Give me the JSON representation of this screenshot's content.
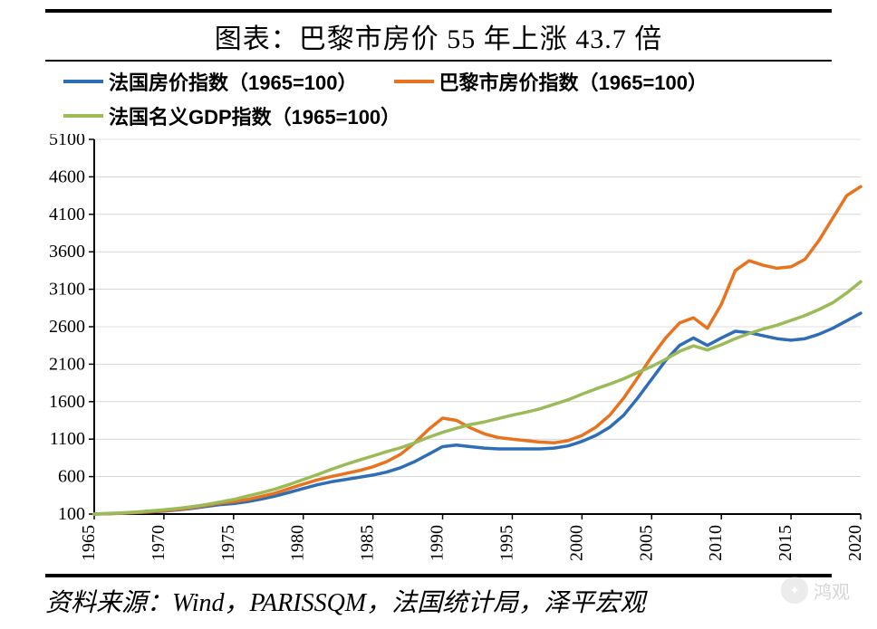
{
  "title": "图表：巴黎市房价 55 年上涨 43.7 倍",
  "legend": {
    "items": [
      {
        "label": "法国房价指数（1965=100）",
        "color": "#2f6db5"
      },
      {
        "label": "巴黎市房价指数（1965=100）",
        "color": "#e8731f"
      },
      {
        "label": "法国名义GDP指数（1965=100）",
        "color": "#9bbb59"
      }
    ]
  },
  "source": "资料来源：Wind，PARISSQM，法国统计局，泽平宏观",
  "watermark": "鸿观",
  "chart": {
    "type": "line",
    "background_color": "#ffffff",
    "grid_color": "#808080",
    "axis_color": "#000000",
    "line_width": 3.5,
    "xlim": [
      1965,
      2020
    ],
    "ylim": [
      100,
      5100
    ],
    "yticks": [
      100,
      600,
      1100,
      1600,
      2100,
      2600,
      3100,
      3600,
      4100,
      4600,
      5100
    ],
    "xticks": [
      1965,
      1970,
      1975,
      1980,
      1985,
      1990,
      1995,
      2000,
      2005,
      2010,
      2015,
      2020
    ],
    "label_fontsize": 20,
    "label_fontfamily": "Times New Roman",
    "x_data": [
      1965,
      1966,
      1967,
      1968,
      1969,
      1970,
      1971,
      1972,
      1973,
      1974,
      1975,
      1976,
      1977,
      1978,
      1979,
      1980,
      1981,
      1982,
      1983,
      1984,
      1985,
      1986,
      1987,
      1988,
      1989,
      1990,
      1991,
      1992,
      1993,
      1994,
      1995,
      1996,
      1997,
      1998,
      1999,
      2000,
      2001,
      2002,
      2003,
      2004,
      2005,
      2006,
      2007,
      2008,
      2009,
      2010,
      2011,
      2012,
      2013,
      2014,
      2015,
      2016,
      2017,
      2018,
      2019,
      2020
    ],
    "series": [
      {
        "name": "france_housing",
        "color": "#2f6db5",
        "values": [
          100,
          105,
          110,
          118,
          128,
          140,
          155,
          175,
          200,
          225,
          240,
          265,
          300,
          340,
          390,
          440,
          490,
          530,
          560,
          590,
          620,
          660,
          720,
          800,
          900,
          1000,
          1020,
          1000,
          980,
          970,
          970,
          970,
          970,
          980,
          1010,
          1070,
          1150,
          1260,
          1420,
          1650,
          1900,
          2150,
          2350,
          2450,
          2350,
          2450,
          2540,
          2520,
          2480,
          2440,
          2420,
          2440,
          2500,
          2580,
          2680,
          2780
        ]
      },
      {
        "name": "paris_housing",
        "color": "#e8731f",
        "values": [
          100,
          106,
          112,
          120,
          132,
          146,
          164,
          186,
          215,
          245,
          265,
          295,
          335,
          380,
          440,
          500,
          555,
          600,
          640,
          680,
          730,
          800,
          900,
          1050,
          1230,
          1380,
          1350,
          1250,
          1170,
          1120,
          1100,
          1080,
          1060,
          1050,
          1080,
          1150,
          1260,
          1420,
          1650,
          1920,
          2200,
          2450,
          2650,
          2720,
          2580,
          2900,
          3350,
          3480,
          3420,
          3380,
          3400,
          3500,
          3750,
          4050,
          4350,
          4470
        ]
      },
      {
        "name": "france_gdp",
        "color": "#9bbb59",
        "values": [
          100,
          108,
          117,
          128,
          142,
          158,
          176,
          198,
          226,
          260,
          295,
          340,
          385,
          435,
          495,
          560,
          625,
          695,
          760,
          820,
          875,
          935,
          985,
          1050,
          1125,
          1190,
          1245,
          1295,
          1330,
          1375,
          1420,
          1460,
          1505,
          1565,
          1625,
          1700,
          1770,
          1835,
          1905,
          1990,
          2070,
          2165,
          2270,
          2345,
          2290,
          2360,
          2440,
          2510,
          2570,
          2620,
          2685,
          2750,
          2830,
          2920,
          3050,
          3200
        ]
      }
    ]
  }
}
